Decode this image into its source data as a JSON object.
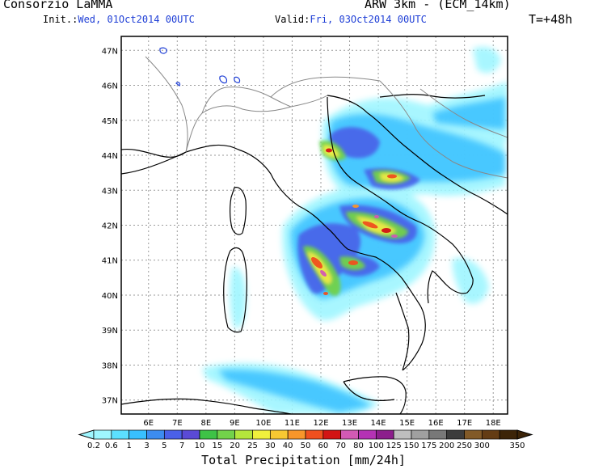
{
  "header": {
    "org": "Consorzio LaMMA",
    "model": "ARW 3km - (ECM_14km)",
    "init_label": "Init.:",
    "init_value": "Wed, 01Oct2014 00UTC",
    "valid_label": "Valid:",
    "valid_value": "Fri, 03Oct2014 00UTC",
    "lead": "T=+48h"
  },
  "map": {
    "lat_labels": [
      "47N",
      "46N",
      "45N",
      "44N",
      "43N",
      "42N",
      "41N",
      "40N",
      "39N",
      "38N",
      "37N"
    ],
    "lon_labels": [
      "6E",
      "7E",
      "8E",
      "9E",
      "10E",
      "11E",
      "12E",
      "13E",
      "14E",
      "15E",
      "16E",
      "17E",
      "18E"
    ],
    "lat_range": [
      36.6,
      47.4
    ],
    "lon_range": [
      5.05,
      18.5
    ]
  },
  "colorbar": {
    "title": "Total Precipitation [mm/24h]",
    "labels": [
      "0.2",
      "0.6",
      "1",
      "3",
      "5",
      "7",
      "10",
      "15",
      "20",
      "25",
      "30",
      "40",
      "50",
      "60",
      "70",
      "80",
      "100",
      "125",
      "150",
      "175",
      "200",
      "250",
      "300",
      "350"
    ],
    "colors": [
      "#9ff6ff",
      "#5ce0ff",
      "#38c0ff",
      "#3c8cf0",
      "#4a60e8",
      "#5a4ad6",
      "#3ec246",
      "#72d24a",
      "#b4e63c",
      "#f0f03c",
      "#f8c832",
      "#f8962a",
      "#f0501e",
      "#d21414",
      "#d25ab4",
      "#b432b4",
      "#8c1e8c",
      "#bebebe",
      "#a0a0a0",
      "#787878",
      "#3c3c3c",
      "#825a28",
      "#643c14",
      "#3c2408"
    ]
  }
}
